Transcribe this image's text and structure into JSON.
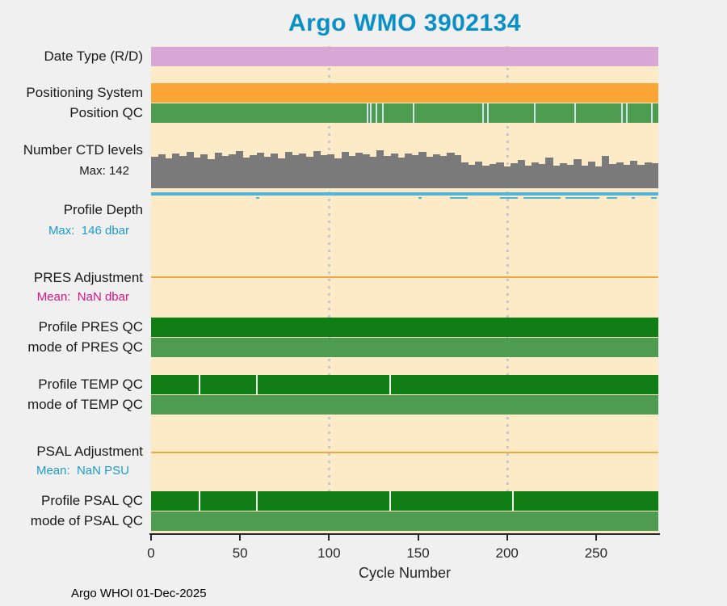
{
  "chart_data": {
    "type": "heatmap",
    "title": "Argo WMO 3902134",
    "title_color": "#0a90c5",
    "xlabel": "Cycle Number",
    "footer": "Argo WHOI 01-Dec-2025",
    "x_max": 285,
    "x_ticks": [
      0,
      50,
      100,
      150,
      200,
      250
    ],
    "gridlines_x": [
      100,
      200
    ],
    "plot_bg_color": "#fdeac6",
    "rows": {
      "date_type": {
        "label": "Date Type (R/D)",
        "color": "#d9a7d6"
      },
      "positioning_system": {
        "label": "Positioning System",
        "color": "#f9a636"
      },
      "position_qc": {
        "label": "Position QC",
        "color": "#4e9c50",
        "tick_color": "#cfe3ee",
        "ticks": [
          121,
          123,
          126,
          130,
          147,
          186,
          189,
          215,
          238,
          264,
          267,
          281
        ]
      },
      "ctd_levels": {
        "label": "Number CTD levels",
        "sublabel": "Max: 142",
        "sublabel_color": "#1a1a1a",
        "color": "#7a7a7a",
        "max": 142,
        "values": [
          118,
          126,
          112,
          131,
          122,
          137,
          116,
          128,
          108,
          134,
          121,
          127,
          140,
          115,
          125,
          133,
          119,
          129,
          111,
          136,
          123,
          130,
          117,
          138,
          124,
          128,
          113,
          135,
          120,
          132,
          126,
          118,
          142,
          122,
          129,
          115,
          131,
          124,
          136,
          119,
          127,
          121,
          133,
          125,
          96,
          88,
          101,
          84,
          92,
          98,
          82,
          94,
          105,
          86,
          97,
          90,
          115,
          84,
          95,
          88,
          108,
          85,
          99,
          82,
          120,
          92,
          96,
          87,
          103,
          89,
          98,
          93
        ]
      },
      "profile_depth": {
        "label": "Profile Depth",
        "sublabel": "Max:  146 dbar",
        "sublabel_color": "#1d9cc9",
        "color": "#4fb6da",
        "max_dbar": 146,
        "marks": [
          [
            59,
            61
          ],
          [
            150,
            152
          ],
          [
            168,
            178
          ],
          [
            196,
            206
          ],
          [
            209,
            230
          ],
          [
            233,
            252
          ],
          [
            256,
            262
          ],
          [
            270,
            272
          ],
          [
            281,
            284
          ]
        ]
      },
      "pres_adjustment": {
        "label": "PRES Adjustment",
        "sublabel": "Mean:  NaN dbar",
        "sublabel_color": "#dd1486",
        "color": "#eda93f"
      },
      "profile_pres_qc": {
        "label": "Profile PRES QC",
        "color": "#117d15",
        "tick_color": "#eef4ee",
        "ticks": []
      },
      "mode_pres_qc": {
        "label": "mode of PRES QC",
        "color": "#4e9c50"
      },
      "profile_temp_qc": {
        "label": "Profile TEMP QC",
        "color": "#117d15",
        "tick_color": "#eef4ee",
        "ticks": [
          27,
          59,
          134
        ]
      },
      "mode_temp_qc": {
        "label": "mode of TEMP QC",
        "color": "#4e9c50"
      },
      "psal_adjustment": {
        "label": "PSAL Adjustment",
        "sublabel": "Mean:  NaN PSU",
        "sublabel_color": "#1d9cc9",
        "color": "#eda93f"
      },
      "profile_psal_qc": {
        "label": "Profile PSAL QC",
        "color": "#117d15",
        "tick_color": "#eef4ee",
        "ticks": [
          27,
          59,
          134,
          203
        ]
      },
      "mode_psal_qc": {
        "label": "mode of PSAL QC",
        "color": "#4e9c50"
      }
    }
  }
}
